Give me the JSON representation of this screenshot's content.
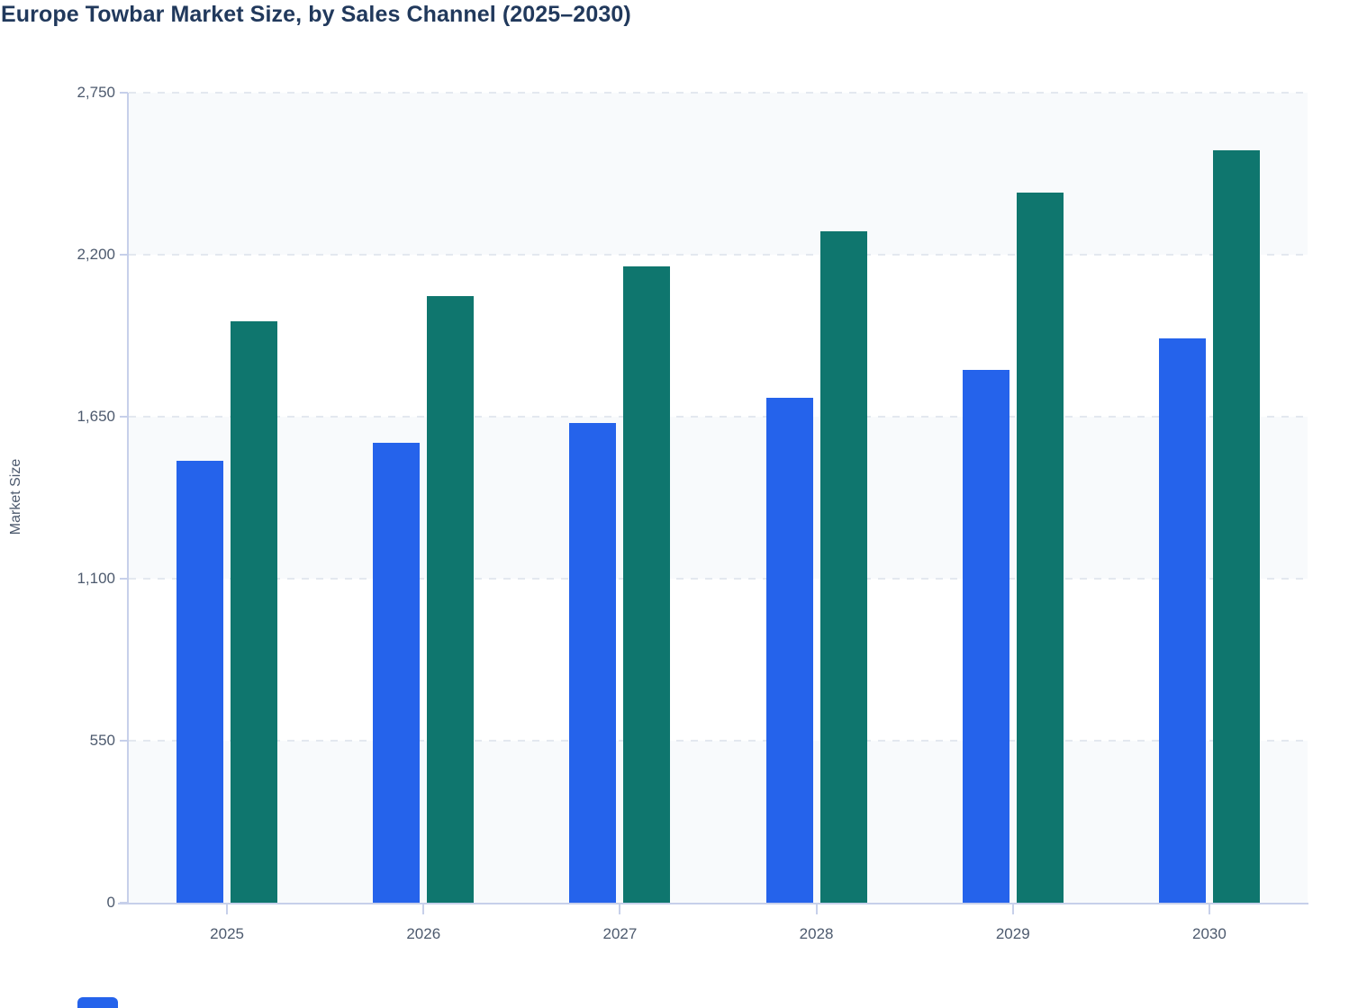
{
  "page": {
    "background": "#FFFFFF"
  },
  "title": "Europe Towbar Market Size, by Sales Channel (2025–2030)",
  "y_axis_title": "Market Size",
  "colors": {
    "series_blue": "#2563EB",
    "series_teal": "#0F766E",
    "band_fill": "#F8FAFC",
    "gridline": "#E3E8EF",
    "axis_line": "#C7D0EA",
    "tick_text": "#4D5A6E",
    "title_text": "#21395C"
  },
  "legend": {
    "partial_swatch_color": "#2563EB"
  },
  "chart_data": {
    "type": "bar",
    "title": "Europe Towbar Market Size, by Sales Channel (2025–2030)",
    "categories": [
      "2025",
      "2026",
      "2027",
      "2028",
      "2029",
      "2030"
    ],
    "series": [
      {
        "name": "blue",
        "color": "#2563EB",
        "values": [
          1500,
          1560,
          1630,
          1715,
          1810,
          1915
        ]
      },
      {
        "name": "teal",
        "color": "#0F766E",
        "values": [
          1975,
          2060,
          2160,
          2280,
          2410,
          2555
        ]
      }
    ],
    "xlabel": "",
    "ylabel": "Market Size",
    "ylim": [
      0,
      2750
    ],
    "yticks": [
      0,
      550,
      1100,
      1650,
      2200,
      2750
    ],
    "ytick_labels": [
      "0",
      "550",
      "1,100",
      "1,650",
      "2,200",
      "2,750"
    ],
    "grid": "horizontal-dashed",
    "band_shading": "alternating horizontal bands between gridlines",
    "legend_position": "below plot (cut off at bottom edge)"
  }
}
